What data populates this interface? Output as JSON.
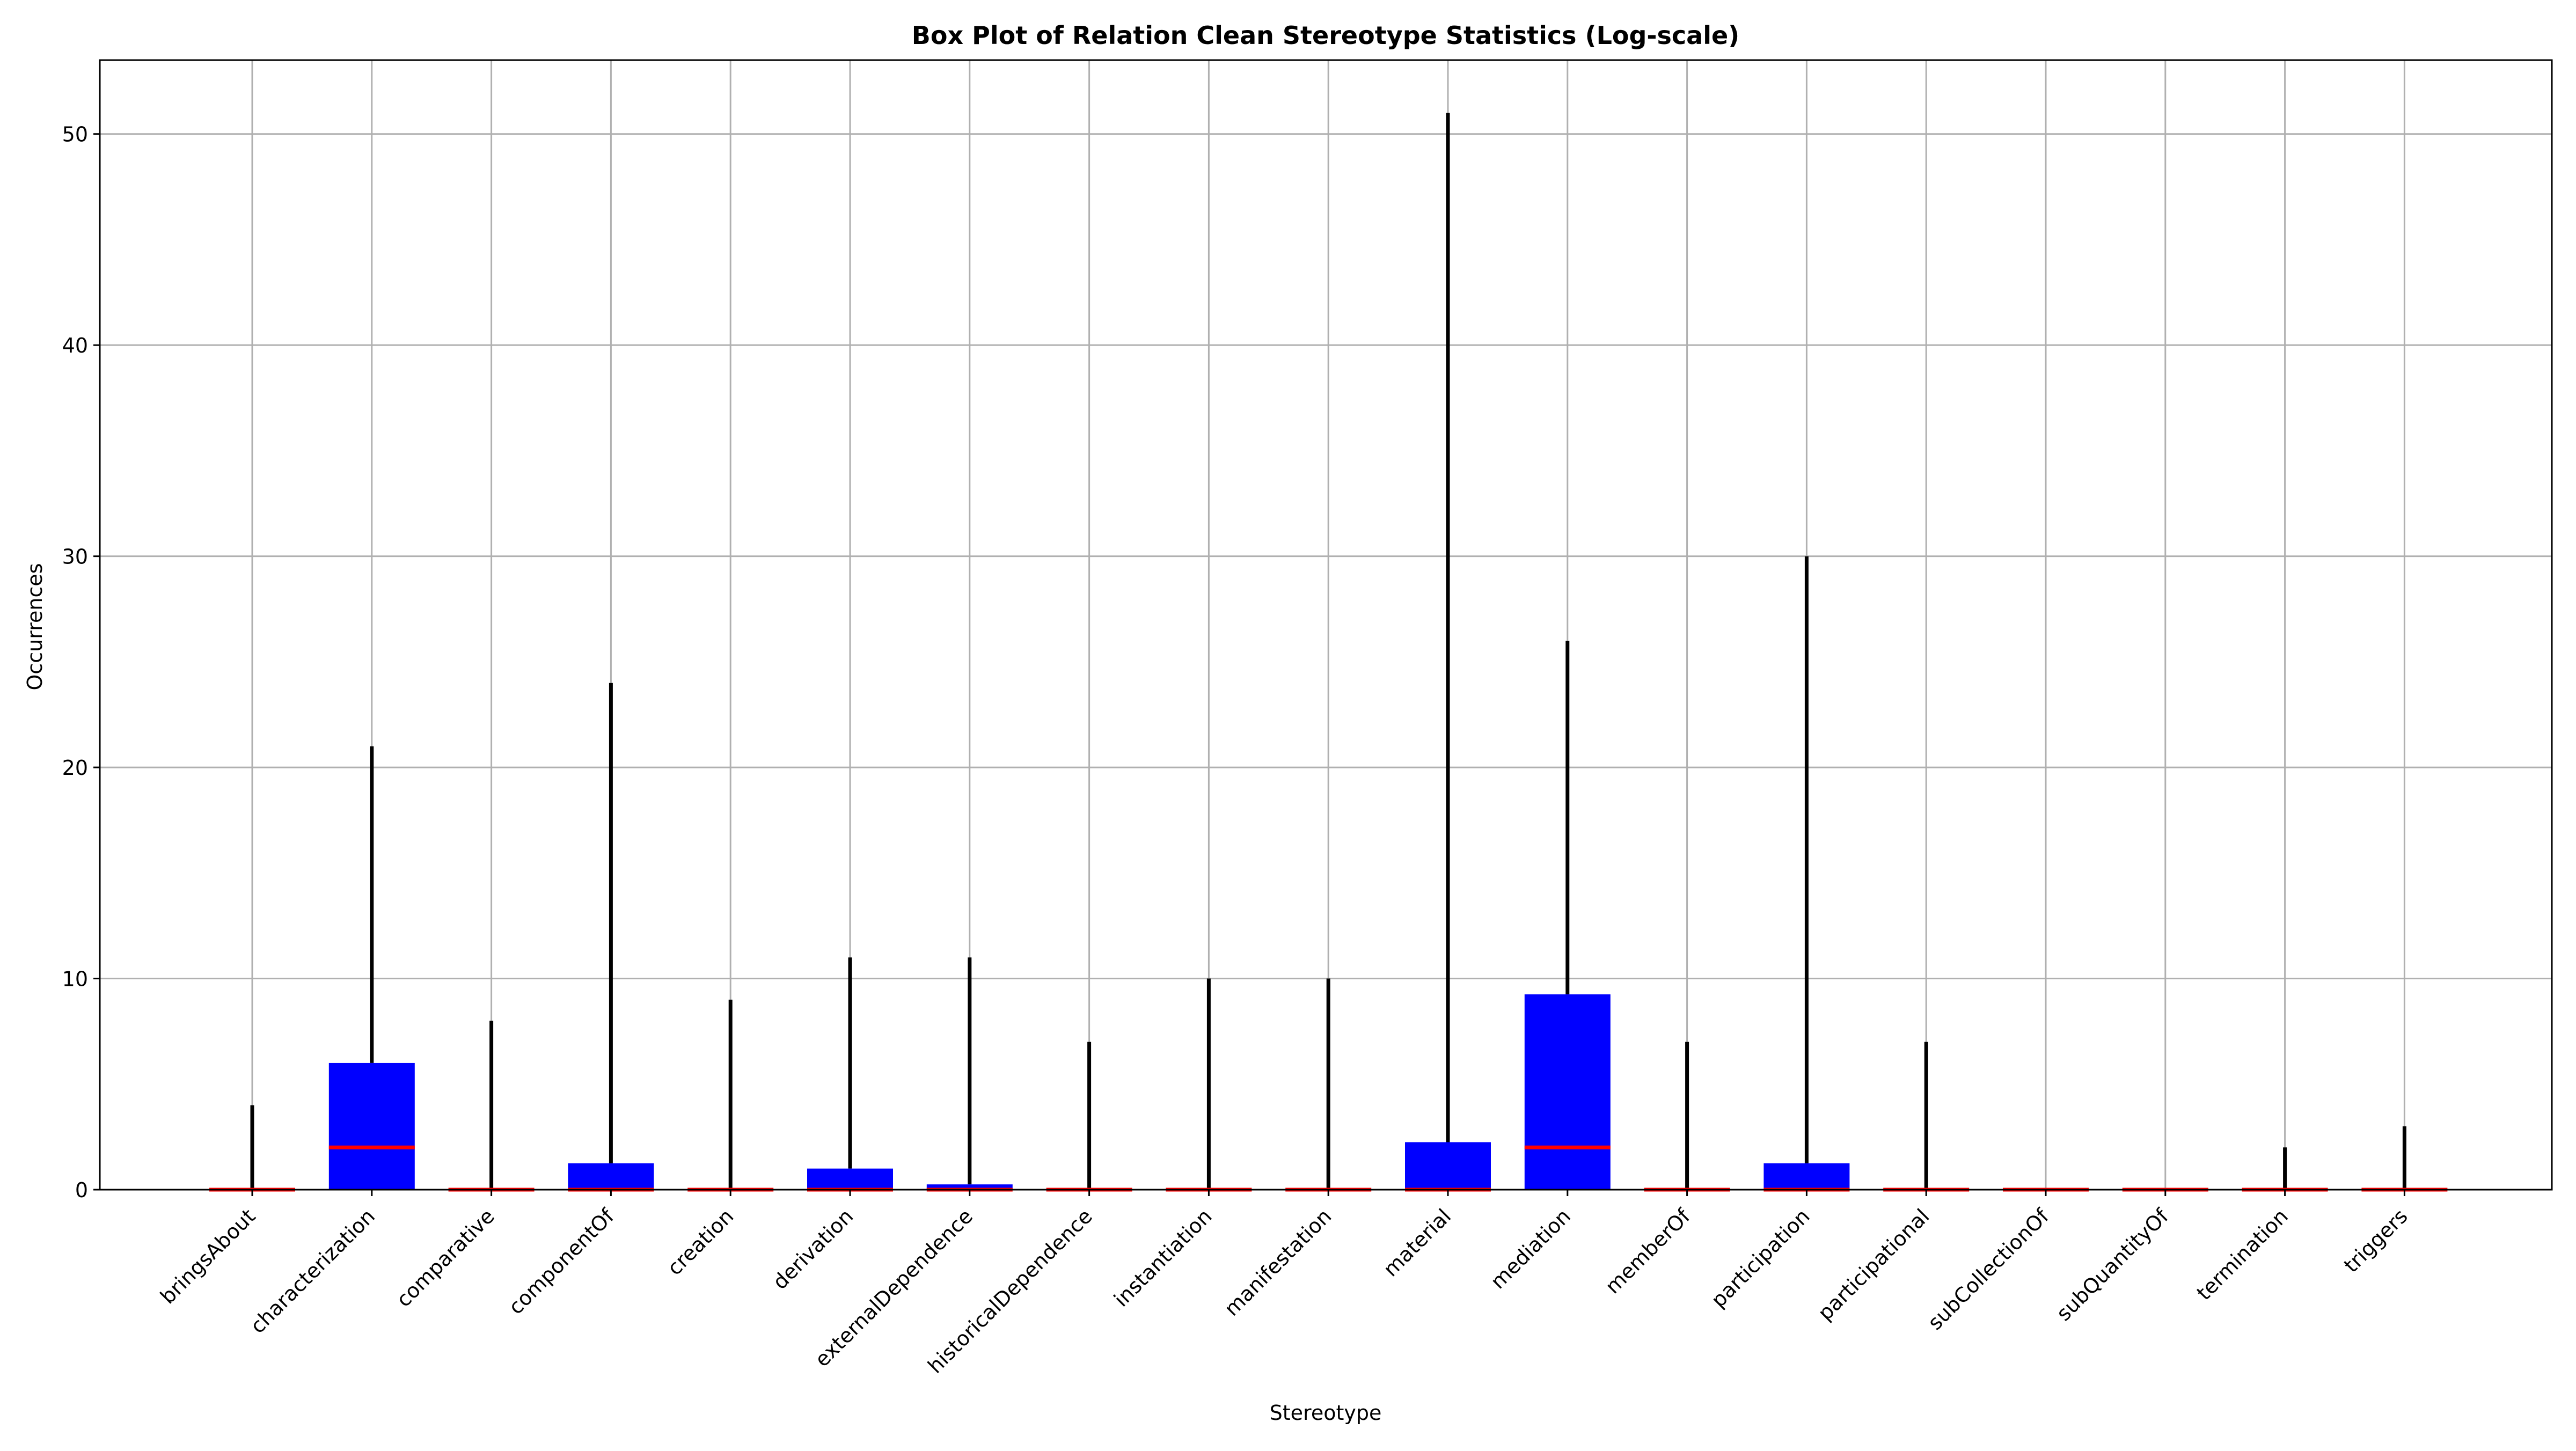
{
  "chart_data": {
    "type": "box",
    "title": "Box Plot of Relation Clean Stereotype Statistics (Log-scale)",
    "xlabel": "Stereotype",
    "ylabel": "Occurrences",
    "ylim": [
      0,
      53.5
    ],
    "yticks": [
      0,
      10,
      20,
      30,
      40,
      50
    ],
    "grid": true,
    "colors": {
      "box": "#0000ff",
      "median": "#ff0000",
      "whisker": "#000000",
      "grid": "#b0b0b0"
    },
    "categories": [
      "bringsAbout",
      "characterization",
      "comparative",
      "componentOf",
      "creation",
      "derivation",
      "externalDependence",
      "historicalDependence",
      "instantiation",
      "manifestation",
      "material",
      "mediation",
      "memberOf",
      "participation",
      "participational",
      "subCollectionOf",
      "subQuantityOf",
      "termination",
      "triggers"
    ],
    "stats": [
      {
        "min": 0,
        "q1": 0,
        "median": 0,
        "q3": 0,
        "max": 4
      },
      {
        "min": 0,
        "q1": 0,
        "median": 2,
        "q3": 6,
        "max": 21
      },
      {
        "min": 0,
        "q1": 0,
        "median": 0,
        "q3": 0,
        "max": 8
      },
      {
        "min": 0,
        "q1": 0,
        "median": 0,
        "q3": 1.25,
        "max": 24
      },
      {
        "min": 0,
        "q1": 0,
        "median": 0,
        "q3": 0,
        "max": 9
      },
      {
        "min": 0,
        "q1": 0,
        "median": 0,
        "q3": 1,
        "max": 11
      },
      {
        "min": 0,
        "q1": 0,
        "median": 0,
        "q3": 0.25,
        "max": 11
      },
      {
        "min": 0,
        "q1": 0,
        "median": 0,
        "q3": 0,
        "max": 7
      },
      {
        "min": 0,
        "q1": 0,
        "median": 0,
        "q3": 0,
        "max": 10
      },
      {
        "min": 0,
        "q1": 0,
        "median": 0,
        "q3": 0,
        "max": 10
      },
      {
        "min": 0,
        "q1": 0,
        "median": 0,
        "q3": 2.25,
        "max": 51
      },
      {
        "min": 0,
        "q1": 0,
        "median": 2,
        "q3": 9.25,
        "max": 26
      },
      {
        "min": 0,
        "q1": 0,
        "median": 0,
        "q3": 0,
        "max": 7
      },
      {
        "min": 0,
        "q1": 0,
        "median": 0,
        "q3": 1.25,
        "max": 30
      },
      {
        "min": 0,
        "q1": 0,
        "median": 0,
        "q3": 0,
        "max": 7
      },
      {
        "min": 0,
        "q1": 0,
        "median": 0,
        "q3": 0,
        "max": 0
      },
      {
        "min": 0,
        "q1": 0,
        "median": 0,
        "q3": 0,
        "max": 0
      },
      {
        "min": 0,
        "q1": 0,
        "median": 0,
        "q3": 0,
        "max": 2
      },
      {
        "min": 0,
        "q1": 0,
        "median": 0,
        "q3": 0,
        "max": 3
      }
    ]
  }
}
